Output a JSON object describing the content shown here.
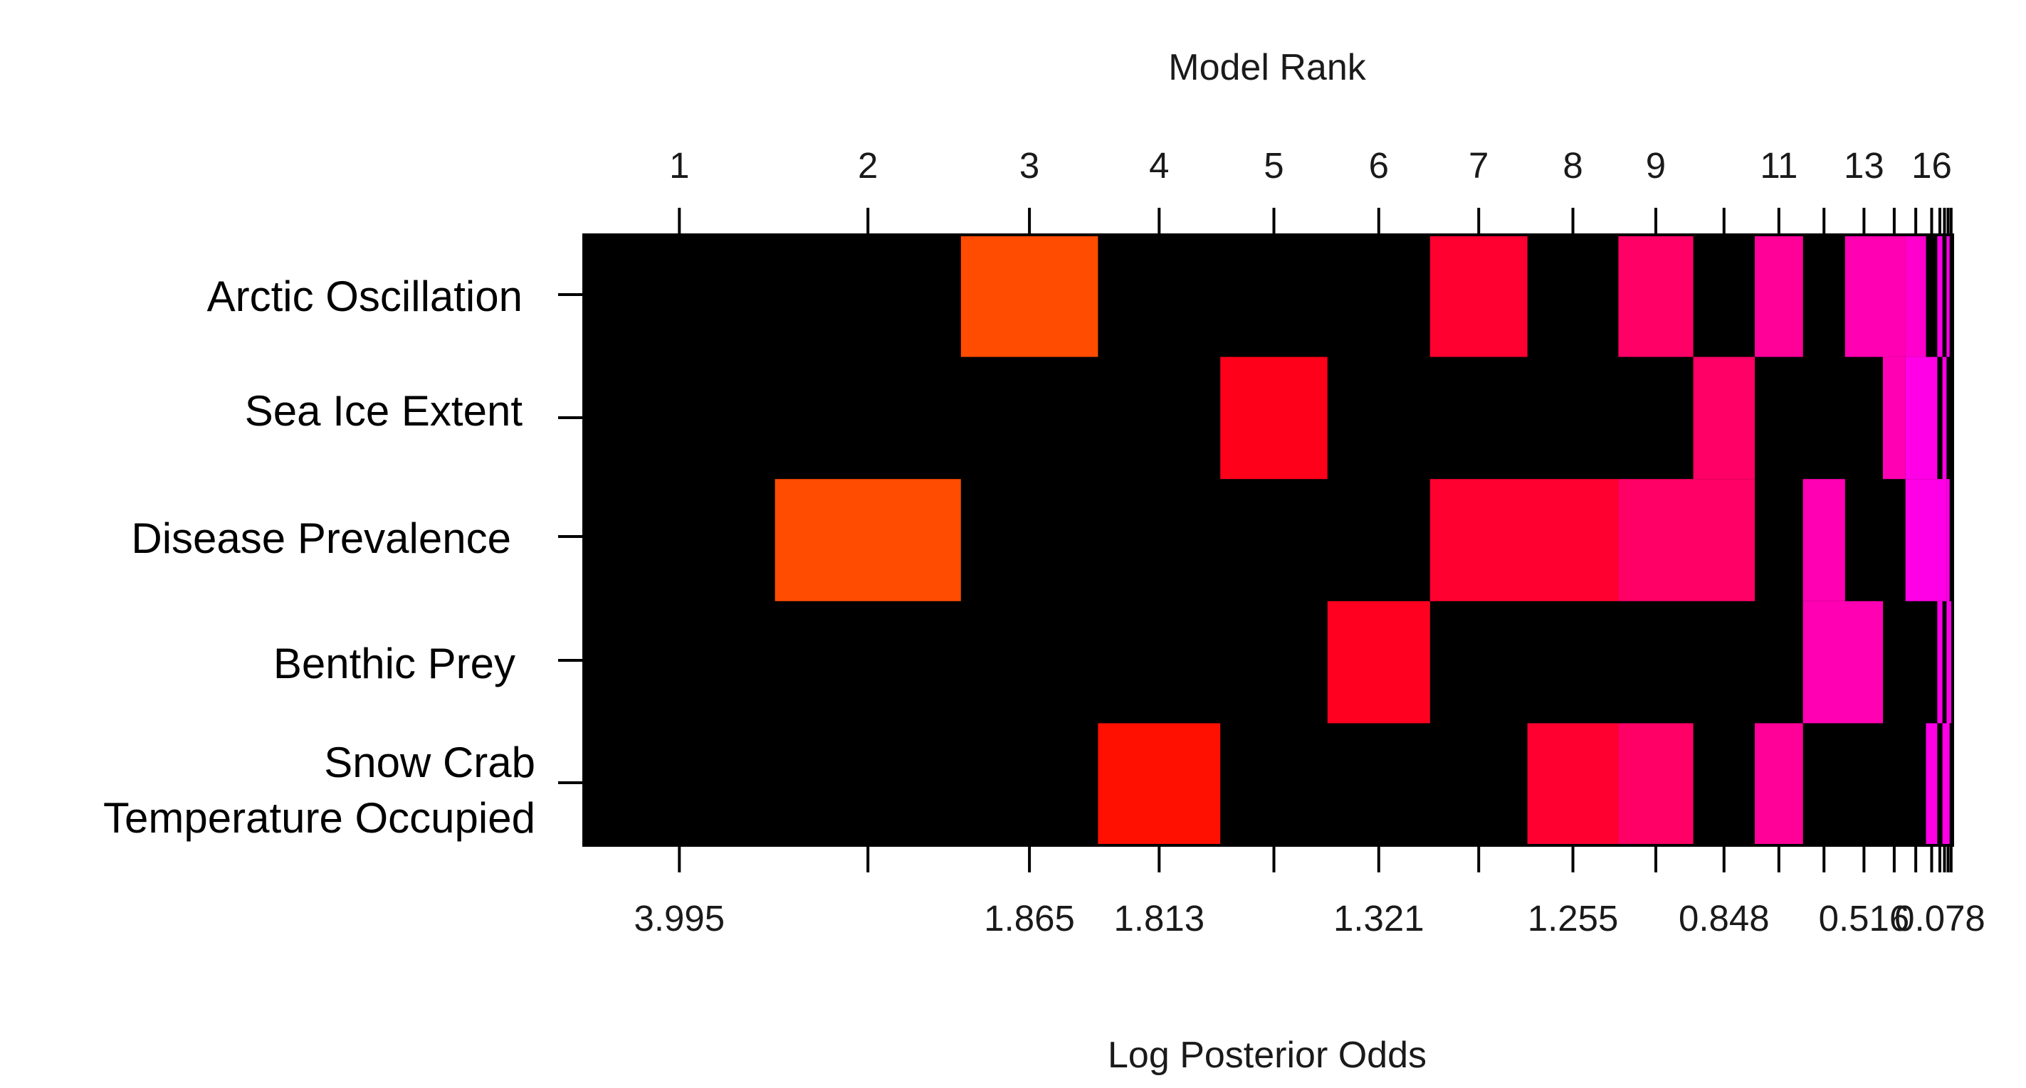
{
  "chart_data": {
    "type": "heatmap",
    "title": "",
    "xlabel": "Log Posterior Odds",
    "x2label": "Model Rank",
    "ylabel": "",
    "rows": [
      [
        "Arctic Oscillation"
      ],
      [
        "Sea Ice Extent"
      ],
      [
        "Disease Prevalence"
      ],
      [
        "Benthic Prey"
      ],
      [
        "Snow Crab",
        "Temperature Occupied"
      ]
    ],
    "top_tick_labels": [
      "1",
      "2",
      "3",
      "4",
      "5",
      "6",
      "7",
      "8",
      "9",
      "11",
      "13",
      "16"
    ],
    "bottom_tick_labels": [
      "3.995",
      "1.865",
      "1.813",
      "1.321",
      "1.255",
      "0.848",
      "0.516",
      "0.078"
    ],
    "background_color": "#000000",
    "models": [
      {
        "rank": 1,
        "start": 0.0,
        "end": 1.865
      },
      {
        "rank": 2,
        "start": 1.865,
        "end": 3.678
      },
      {
        "rank": 3,
        "start": 3.678,
        "end": 5.015
      },
      {
        "rank": 4,
        "start": 5.015,
        "end": 6.208
      },
      {
        "rank": 5,
        "start": 6.208,
        "end": 7.253
      },
      {
        "rank": 6,
        "start": 7.253,
        "end": 8.253
      },
      {
        "rank": 7,
        "start": 8.253,
        "end": 9.203
      },
      {
        "rank": 8,
        "start": 9.203,
        "end": 10.09
      },
      {
        "rank": 9,
        "start": 10.09,
        "end": 10.82
      },
      {
        "rank": 10,
        "start": 10.82,
        "end": 11.42
      },
      {
        "rank": 11,
        "start": 11.42,
        "end": 11.89
      },
      {
        "rank": 12,
        "start": 11.89,
        "end": 12.3
      },
      {
        "rank": 13,
        "start": 12.3,
        "end": 12.67
      },
      {
        "rank": 14,
        "start": 12.67,
        "end": 12.89
      },
      {
        "rank": 15,
        "start": 12.89,
        "end": 13.09
      },
      {
        "rank": 16,
        "start": 13.09,
        "end": 13.2
      },
      {
        "rank": 17,
        "start": 13.2,
        "end": 13.25
      },
      {
        "rank": 18,
        "start": 13.25,
        "end": 13.29
      },
      {
        "rank": 19,
        "start": 13.29,
        "end": 13.32
      },
      {
        "rank": 20,
        "start": 13.32,
        "end": 13.35
      }
    ],
    "cells": [
      {
        "row": 0,
        "from_rank": 3,
        "to_rank": 3,
        "color": "#ff4c00"
      },
      {
        "row": 0,
        "from_rank": 7,
        "to_rank": 7,
        "color": "#ff0030"
      },
      {
        "row": 0,
        "from_rank": 9,
        "to_rank": 9,
        "color": "#ff0066"
      },
      {
        "row": 0,
        "from_rank": 11,
        "to_rank": 11,
        "color": "#ff0099"
      },
      {
        "row": 0,
        "from_rank": 13,
        "to_rank": 14,
        "color": "#ff00b2"
      },
      {
        "row": 0,
        "from_rank": 15,
        "to_rank": 15,
        "color": "#ff00cc"
      },
      {
        "row": 0,
        "from_rank": 17,
        "to_rank": 17,
        "color": "#ff00e6"
      },
      {
        "row": 0,
        "from_rank": 19,
        "to_rank": 19,
        "color": "#ff00e6"
      },
      {
        "row": 1,
        "from_rank": 5,
        "to_rank": 5,
        "color": "#ff001a"
      },
      {
        "row": 1,
        "from_rank": 10,
        "to_rank": 10,
        "color": "#ff0066"
      },
      {
        "row": 1,
        "from_rank": 14,
        "to_rank": 14,
        "color": "#ff00b2"
      },
      {
        "row": 1,
        "from_rank": 15,
        "to_rank": 16,
        "color": "#ff00e6"
      },
      {
        "row": 1,
        "from_rank": 18,
        "to_rank": 18,
        "color": "#ff00e6"
      },
      {
        "row": 2,
        "from_rank": 2,
        "to_rank": 2,
        "color": "#ff4c00"
      },
      {
        "row": 2,
        "from_rank": 7,
        "to_rank": 8,
        "color": "#ff0030"
      },
      {
        "row": 2,
        "from_rank": 9,
        "to_rank": 10,
        "color": "#ff0066"
      },
      {
        "row": 2,
        "from_rank": 12,
        "to_rank": 12,
        "color": "#ff00b2"
      },
      {
        "row": 2,
        "from_rank": 15,
        "to_rank": 18,
        "color": "#ff00e6"
      },
      {
        "row": 2,
        "from_rank": 19,
        "to_rank": 19,
        "color": "#ff00e6"
      },
      {
        "row": 3,
        "from_rank": 6,
        "to_rank": 6,
        "color": "#ff0020"
      },
      {
        "row": 3,
        "from_rank": 12,
        "to_rank": 13,
        "color": "#ff00b2"
      },
      {
        "row": 3,
        "from_rank": 17,
        "to_rank": 17,
        "color": "#ff00e6"
      },
      {
        "row": 3,
        "from_rank": 19,
        "to_rank": 20,
        "color": "#ff00e6"
      },
      {
        "row": 4,
        "from_rank": 4,
        "to_rank": 4,
        "color": "#ff1000"
      },
      {
        "row": 4,
        "from_rank": 8,
        "to_rank": 8,
        "color": "#ff0030"
      },
      {
        "row": 4,
        "from_rank": 9,
        "to_rank": 9,
        "color": "#ff0066"
      },
      {
        "row": 4,
        "from_rank": 11,
        "to_rank": 11,
        "color": "#ff0099"
      },
      {
        "row": 4,
        "from_rank": 16,
        "to_rank": 16,
        "color": "#ff00e6"
      },
      {
        "row": 4,
        "from_rank": 18,
        "to_rank": 19,
        "color": "#ff00e6"
      }
    ]
  }
}
